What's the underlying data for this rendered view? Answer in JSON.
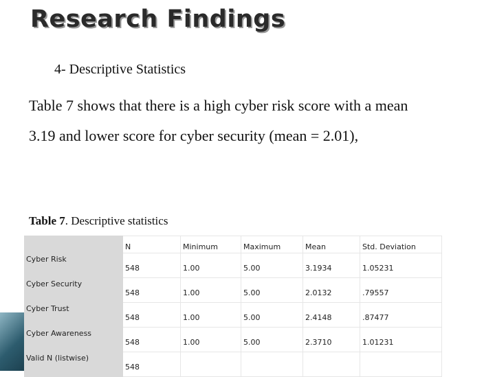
{
  "slide": {
    "title": "Research Findings",
    "subheading": "4- Descriptive Statistics",
    "body_line1": "Table 7 shows that there is a high cyber risk score with a mean",
    "body_line2": "3.19 and lower score for cyber security (mean = 2.01),",
    "caption_bold": "Table 7",
    "caption_rest": ". Descriptive statistics"
  },
  "table": {
    "headers": [
      "N",
      "Minimum",
      "Maximum",
      "Mean",
      "Std. Deviation"
    ],
    "rows": [
      {
        "label": "Cyber Risk",
        "cells": [
          "548",
          "1.00",
          "5.00",
          "3.1934",
          "1.05231"
        ]
      },
      {
        "label": "Cyber Security",
        "cells": [
          "548",
          "1.00",
          "5.00",
          "2.0132",
          ".79557"
        ]
      },
      {
        "label": "Cyber Trust",
        "cells": [
          "548",
          "1.00",
          "5.00",
          "2.4148",
          ".87477"
        ]
      },
      {
        "label": "Cyber Awareness",
        "cells": [
          "548",
          "1.00",
          "5.00",
          "2.3710",
          "1.01231"
        ]
      },
      {
        "label": "Valid N (listwise)",
        "cells": [
          "548",
          "",
          "",
          "",
          ""
        ]
      }
    ]
  },
  "colors": {
    "title_text": "#2a2a2a",
    "row_label_bg": "#d9d9d9",
    "deco_band": "#2d5c6e"
  }
}
